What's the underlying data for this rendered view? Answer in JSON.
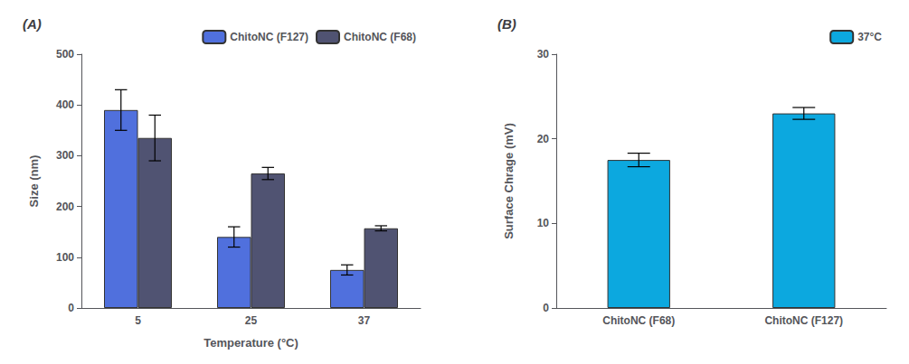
{
  "chart_data": [
    {
      "type": "bar",
      "title": "(A)",
      "xlabel": "Temperature (°C)",
      "ylabel": "Size (nm)",
      "categories": [
        "5",
        "25",
        "37"
      ],
      "series": [
        {
          "name": "ChitoNC (F127)",
          "values": [
            390,
            140,
            75
          ],
          "errors": [
            40,
            20,
            10
          ]
        },
        {
          "name": "ChitoNC (F68)",
          "values": [
            335,
            265,
            157
          ],
          "errors": [
            45,
            12,
            5
          ]
        }
      ],
      "ylim": [
        0,
        500
      ],
      "yticks": [
        0,
        100,
        200,
        300,
        400,
        500
      ],
      "grid": false,
      "legend": "upper right"
    },
    {
      "type": "bar",
      "title": "(B)",
      "ylabel": "Surface Chrage (mV)",
      "categories": [
        "ChitoNC (F68)",
        "ChitoNC (F127)"
      ],
      "series": [
        {
          "name": "37°C",
          "values": [
            17.5,
            23.0
          ],
          "errors": [
            0.8,
            0.7
          ]
        }
      ],
      "ylim": [
        0,
        30
      ],
      "yticks": [
        0,
        10,
        20,
        30
      ],
      "grid": false,
      "legend": "upper right"
    }
  ]
}
